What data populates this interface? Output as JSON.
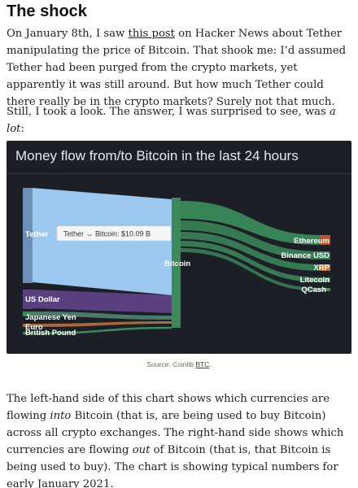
{
  "heading": "The shock",
  "paragraph1": {
    "before_link": "On January 8th, I saw ",
    "link": "this post",
    "after_link": " on Hacker News about Tether manipulating the price of Bitcoin. That shook me: I’d assumed Tether had been purged from the crypto markets, yet apparently it was still around. But how much Tether could there really be in the crypto markets? Surely not that much."
  },
  "paragraph2": {
    "before_em": "Still, I took a look. The answer, I was surprised to see, was ",
    "em": "a lot",
    "after_em": ":"
  },
  "figure": {
    "title": "Money flow from/to Bitcoin in the last 24 hours",
    "tooltip": "Tether ↔ Bitcoin: $10.09 B",
    "colors": {
      "background": "#1d1f27",
      "tether": "#9cc8ef",
      "tether_node": "#6d8fb5",
      "us_dollar": "#5a4080",
      "green": "#3b8a5a",
      "ethereum": "#c2542c",
      "xrp": "#d2732a"
    },
    "sources": [
      {
        "label": "Tether",
        "value": 10.09
      },
      {
        "label": "US Dollar"
      },
      {
        "label": "Japanese Yen"
      },
      {
        "label": "Euro"
      },
      {
        "label": "British Pound"
      }
    ],
    "center": {
      "label": "Bitcoin"
    },
    "targets": [
      {
        "label": "Ethereum"
      },
      {
        "label": "Binance USD"
      },
      {
        "label": "XRP"
      },
      {
        "label": "Litecoin"
      },
      {
        "label": "QCash"
      }
    ]
  },
  "caption": {
    "prefix": "Source: Coinlib ",
    "link": "BTC",
    "suffix": "."
  },
  "paragraph3": {
    "t1": "The left-hand side of this chart shows which currencies are flowing ",
    "em1": "into",
    "t2": " Bitcoin (that is, are being used to buy Bitcoin) across all crypto exchanges. The right-hand side shows which currencies are flowing ",
    "em2": "out",
    "t3": " of Bitcoin (that is, that Bitcoin is being used to buy). The chart is showing typical numbers for early January 2021."
  }
}
